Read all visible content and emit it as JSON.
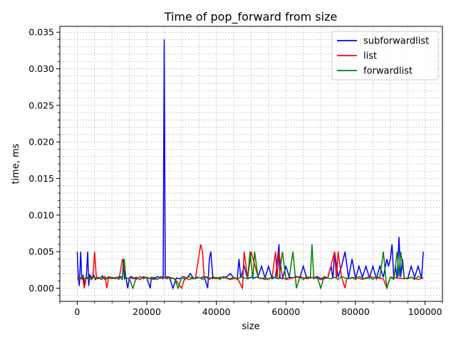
{
  "chart_data": {
    "type": "line",
    "title": "Time of pop_forward from size",
    "xlabel": "size",
    "ylabel": "time, ms",
    "xlim": [
      -5000,
      105000
    ],
    "ylim": [
      -0.0018,
      0.0358
    ],
    "xticks": [
      0,
      20000,
      40000,
      60000,
      80000,
      100000
    ],
    "xtick_labels": [
      "0",
      "20000",
      "40000",
      "60000",
      "80000",
      "100000"
    ],
    "yticks": [
      0.0,
      0.005,
      0.01,
      0.015,
      0.02,
      0.025,
      0.03,
      0.035
    ],
    "ytick_labels": [
      "0.000",
      "0.005",
      "0.010",
      "0.015",
      "0.020",
      "0.025",
      "0.030",
      "0.035"
    ],
    "grid": true,
    "legend_position": "top-right",
    "series": [
      {
        "name": "subforwardlist",
        "color": "#0000ff",
        "x": [
          0,
          300,
          600,
          1000,
          1300,
          1700,
          2200,
          2600,
          3000,
          3300,
          3600,
          3900,
          4300,
          4700,
          5200,
          5800,
          6500,
          7200,
          8000,
          9000,
          10000,
          11000,
          12000,
          13000,
          13300,
          13600,
          14000,
          14500,
          15000,
          15500,
          16000,
          17000,
          18000,
          19000,
          20000,
          21000,
          21300,
          22000,
          23000,
          24000,
          24700,
          25000,
          25300,
          25800,
          26500,
          27500,
          28500,
          29500,
          30500,
          31500,
          32500,
          33500,
          34500,
          35500,
          36500,
          37500,
          38000,
          38400,
          39000,
          40000,
          41000,
          42000,
          43000,
          44000,
          45000,
          46000,
          46500,
          47000,
          48000,
          49000,
          50000,
          51000,
          52000,
          53000,
          54000,
          55000,
          56000,
          57000,
          58000,
          58300,
          59000,
          60000,
          61000,
          62000,
          63000,
          64000,
          65000,
          66000,
          67000,
          68000,
          69000,
          70000,
          71000,
          72000,
          73000,
          73500,
          74000,
          75000,
          76000,
          77000,
          78000,
          79000,
          80000,
          81000,
          82000,
          83000,
          84000,
          85000,
          86000,
          87000,
          88000,
          89000,
          89500,
          90000,
          90500,
          91000,
          91500,
          92000,
          92500,
          93000,
          93500,
          94000,
          95000,
          96000,
          97000,
          98000,
          99000,
          99500
        ],
        "y": [
          0.005,
          0.0015,
          0.0003,
          0.005,
          0.0012,
          0.0018,
          0.0004,
          0.0015,
          0.005,
          0.0003,
          0.0019,
          0.0015,
          0.0013,
          0.0018,
          0.0012,
          0.0015,
          0.0013,
          0.0017,
          0.0012,
          0.0014,
          0.0015,
          0.0013,
          0.0016,
          0.0015,
          0.004,
          0.0013,
          0.0015,
          0.0,
          0.0014,
          0.0016,
          0.0013,
          0.0015,
          0.0012,
          0.0015,
          0.0014,
          0.0,
          0.0015,
          0.0013,
          0.0016,
          0.0014,
          0.0013,
          0.034,
          0.0014,
          0.0013,
          0.0015,
          0.0,
          0.0014,
          0.0013,
          0.0016,
          0.0014,
          0.002,
          0.0013,
          0.0015,
          0.0014,
          0.0016,
          0.0,
          0.004,
          0.005,
          0.0014,
          0.0013,
          0.0015,
          0.0014,
          0.0016,
          0.002,
          0.0014,
          0.0013,
          0.004,
          0.0014,
          0.003,
          0.0013,
          0.0015,
          0.0014,
          0.0016,
          0.003,
          0.0014,
          0.003,
          0.0013,
          0.0015,
          0.006,
          0.0014,
          0.0013,
          0.003,
          0.0015,
          0.0014,
          0.0016,
          0.0014,
          0.003,
          0.0013,
          0.0015,
          0.0014,
          0.0016,
          0.0013,
          0.0015,
          0.0014,
          0.003,
          0.0013,
          0.005,
          0.0015,
          0.003,
          0.005,
          0.0014,
          0.004,
          0.0013,
          0.003,
          0.0015,
          0.003,
          0.0014,
          0.003,
          0.0013,
          0.003,
          0.0015,
          0.004,
          0.003,
          0.004,
          0.006,
          0.0014,
          0.003,
          0.0013,
          0.007,
          0.0015,
          0.004,
          0.0014,
          0.0013,
          0.003,
          0.0015,
          0.003,
          0.0014,
          0.005
        ]
      },
      {
        "name": "list",
        "color": "#ff0000",
        "x": [
          0,
          500,
          1000,
          1500,
          2000,
          2500,
          3000,
          3500,
          4000,
          4500,
          5000,
          5500,
          6000,
          7000,
          8000,
          8500,
          9000,
          10000,
          11000,
          12000,
          13000,
          14000,
          15000,
          16000,
          17000,
          18000,
          19000,
          20000,
          22000,
          24000,
          26000,
          28000,
          30000,
          31000,
          32000,
          34000,
          35500,
          36000,
          36500,
          37000,
          38000,
          39000,
          40000,
          42000,
          44000,
          46000,
          47500,
          48000,
          49000,
          50000,
          52000,
          54000,
          56000,
          57000,
          57500,
          58000,
          59000,
          60000,
          62000,
          64000,
          66000,
          68000,
          70000,
          72000,
          74000,
          74500,
          75000,
          76000,
          77000,
          77500,
          78000,
          80000,
          82000,
          84000,
          86000,
          88000,
          89000,
          90000,
          92000,
          94000,
          96000,
          98000,
          99500
        ],
        "y": [
          0.0012,
          0.0015,
          0.0013,
          0.0016,
          0.0,
          0.0014,
          0.0013,
          0.0015,
          0.0012,
          0.0016,
          0.005,
          0.0013,
          0.0015,
          0.0012,
          0.0016,
          0.0,
          0.0014,
          0.0013,
          0.0015,
          0.0012,
          0.004,
          0.0014,
          0.0013,
          0.0015,
          0.0012,
          0.0016,
          0.0013,
          0.0015,
          0.0012,
          0.0014,
          0.0016,
          0.0013,
          0.0,
          0.0015,
          0.0012,
          0.0014,
          0.006,
          0.005,
          0.0013,
          0.0015,
          0.0012,
          0.0016,
          0.0013,
          0.0015,
          0.0012,
          0.0014,
          0.0,
          0.005,
          0.0013,
          0.005,
          0.0015,
          0.0012,
          0.0014,
          0.005,
          0.0013,
          0.005,
          0.0015,
          0.0012,
          0.0014,
          0.0016,
          0.0013,
          0.0015,
          0.0012,
          0.0014,
          0.005,
          0.0013,
          0.005,
          0.0015,
          0.0,
          0.0014,
          0.0013,
          0.0015,
          0.0012,
          0.0016,
          0.0014,
          0.0013,
          0.0,
          0.0015,
          0.0014,
          0.0013,
          0.0015,
          0.0012,
          0.0014
        ]
      },
      {
        "name": "forwardlist",
        "color": "#008000",
        "x": [
          0,
          700,
          1400,
          2100,
          2800,
          3500,
          4200,
          5000,
          6000,
          7000,
          8000,
          9000,
          10000,
          11000,
          12000,
          13000,
          13500,
          14000,
          15000,
          16000,
          17000,
          18000,
          19000,
          20000,
          21000,
          22000,
          23000,
          24000,
          26000,
          28000,
          29000,
          30000,
          31000,
          32000,
          33000,
          34000,
          35000,
          36000,
          37000,
          38000,
          39000,
          40000,
          41000,
          42000,
          43000,
          44000,
          45000,
          46000,
          47000,
          48000,
          49000,
          49700,
          50500,
          51000,
          52000,
          53000,
          54000,
          55000,
          56000,
          57000,
          58000,
          59000,
          60000,
          61000,
          62000,
          63000,
          64000,
          65000,
          66000,
          67000,
          67500,
          68000,
          69000,
          70000,
          71000,
          72000,
          73000,
          74000,
          75000,
          76000,
          77000,
          78000,
          79000,
          80000,
          81000,
          82000,
          83000,
          84000,
          85000,
          86000,
          87000,
          88000,
          89000,
          90000,
          91000,
          92000,
          92500,
          93000,
          94000,
          95000,
          96000,
          97000,
          98000,
          99000,
          99500
        ],
        "y": [
          0.0015,
          0.0012,
          0.0016,
          0.0013,
          0.0015,
          0.0012,
          0.0016,
          0.0014,
          0.0013,
          0.0015,
          0.0012,
          0.0016,
          0.0014,
          0.0013,
          0.0015,
          0.0012,
          0.004,
          0.0014,
          0.0013,
          0.0,
          0.0015,
          0.0012,
          0.0016,
          0.0014,
          0.0013,
          0.0015,
          0.0012,
          0.0016,
          0.0014,
          0.0013,
          0.0,
          0.0015,
          0.0012,
          0.0016,
          0.0014,
          0.0013,
          0.0015,
          0.0012,
          0.0016,
          0.0014,
          0.0013,
          0.0015,
          0.0012,
          0.0016,
          0.0014,
          0.0013,
          0.0015,
          0.0012,
          0.0016,
          0.0014,
          0.0013,
          0.005,
          0.0012,
          0.005,
          0.0014,
          0.0013,
          0.0015,
          0.0012,
          0.0016,
          0.0014,
          0.0013,
          0.005,
          0.0012,
          0.0016,
          0.005,
          0.0,
          0.0015,
          0.0012,
          0.0016,
          0.0014,
          0.006,
          0.0013,
          0.0015,
          0.0,
          0.0016,
          0.0014,
          0.0013,
          0.0015,
          0.0012,
          0.0016,
          0.0014,
          0.0013,
          0.0015,
          0.0012,
          0.0016,
          0.0014,
          0.0013,
          0.0015,
          0.0012,
          0.0016,
          0.0014,
          0.005,
          0.0,
          0.0015,
          0.0012,
          0.005,
          0.0016,
          0.005,
          0.0014,
          0.0013,
          0.0015,
          0.0012,
          0.0016,
          0.0014,
          0.0013
        ]
      }
    ]
  }
}
